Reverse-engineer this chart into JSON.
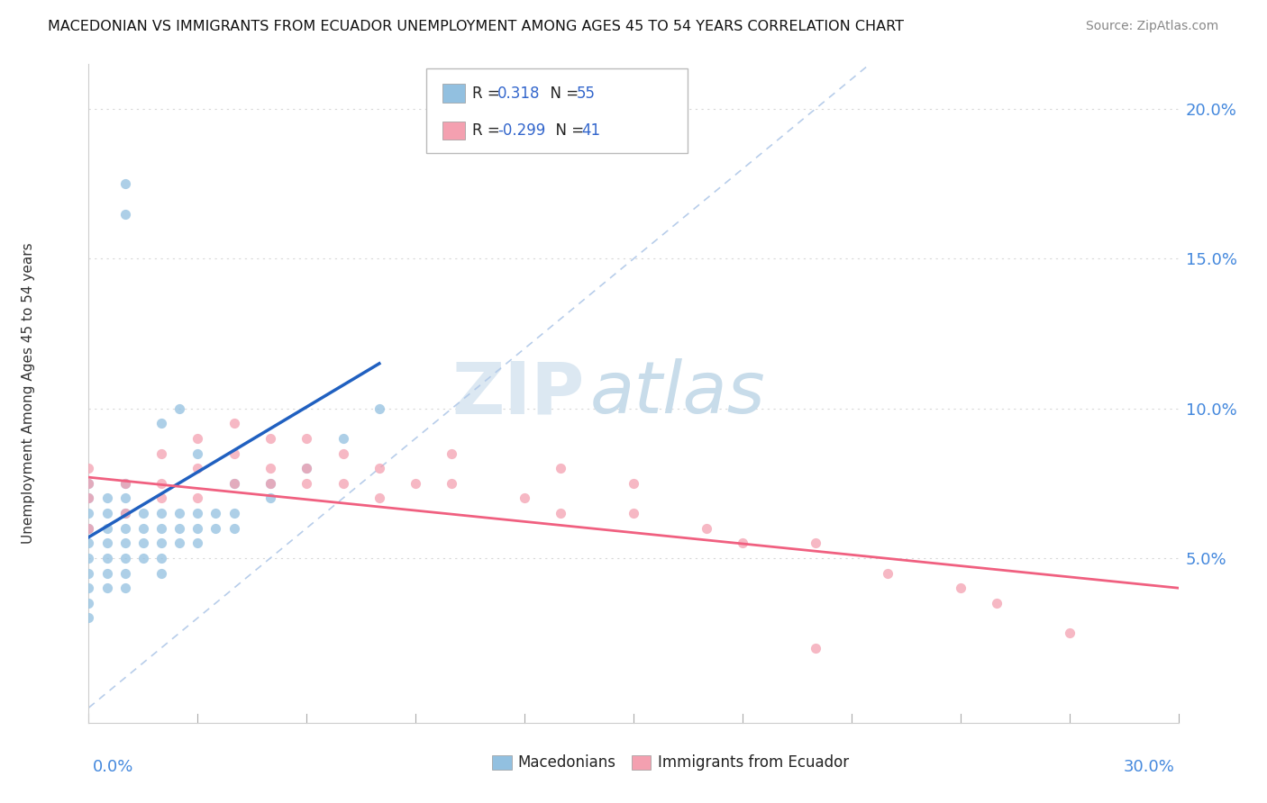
{
  "title": "MACEDONIAN VS IMMIGRANTS FROM ECUADOR UNEMPLOYMENT AMONG AGES 45 TO 54 YEARS CORRELATION CHART",
  "source": "Source: ZipAtlas.com",
  "ylabel": "Unemployment Among Ages 45 to 54 years",
  "xlim": [
    0.0,
    0.3
  ],
  "ylim": [
    -0.005,
    0.215
  ],
  "yticks": [
    0.0,
    0.05,
    0.1,
    0.15,
    0.2
  ],
  "ytick_labels": [
    "",
    "5.0%",
    "10.0%",
    "15.0%",
    "20.0%"
  ],
  "blue_color": "#92c0e0",
  "pink_color": "#f4a0b0",
  "blue_line_color": "#2060c0",
  "pink_line_color": "#f06080",
  "diag_line_color": "#b0c8e8",
  "grid_color": "#d8d8d8",
  "mac_x": [
    0.0,
    0.0,
    0.0,
    0.0,
    0.0,
    0.0,
    0.0,
    0.0,
    0.0,
    0.0,
    0.005,
    0.005,
    0.005,
    0.005,
    0.005,
    0.005,
    0.005,
    0.01,
    0.01,
    0.01,
    0.01,
    0.01,
    0.01,
    0.01,
    0.01,
    0.015,
    0.015,
    0.015,
    0.015,
    0.02,
    0.02,
    0.02,
    0.02,
    0.02,
    0.025,
    0.025,
    0.025,
    0.03,
    0.03,
    0.03,
    0.035,
    0.035,
    0.04,
    0.04,
    0.05,
    0.05,
    0.06,
    0.07,
    0.08,
    0.01,
    0.01,
    0.02,
    0.025,
    0.03,
    0.04
  ],
  "mac_y": [
    0.035,
    0.04,
    0.045,
    0.05,
    0.055,
    0.06,
    0.065,
    0.07,
    0.075,
    0.03,
    0.04,
    0.045,
    0.05,
    0.055,
    0.06,
    0.065,
    0.07,
    0.04,
    0.045,
    0.05,
    0.055,
    0.06,
    0.065,
    0.07,
    0.075,
    0.05,
    0.055,
    0.06,
    0.065,
    0.045,
    0.05,
    0.055,
    0.06,
    0.065,
    0.055,
    0.06,
    0.065,
    0.055,
    0.06,
    0.065,
    0.06,
    0.065,
    0.06,
    0.065,
    0.07,
    0.075,
    0.08,
    0.09,
    0.1,
    0.165,
    0.175,
    0.095,
    0.1,
    0.085,
    0.075
  ],
  "ecu_x": [
    0.0,
    0.0,
    0.0,
    0.0,
    0.01,
    0.01,
    0.02,
    0.02,
    0.02,
    0.03,
    0.03,
    0.03,
    0.04,
    0.04,
    0.04,
    0.05,
    0.05,
    0.05,
    0.06,
    0.06,
    0.06,
    0.07,
    0.07,
    0.08,
    0.08,
    0.09,
    0.1,
    0.1,
    0.12,
    0.13,
    0.15,
    0.17,
    0.18,
    0.2,
    0.22,
    0.24,
    0.25,
    0.27,
    0.13,
    0.15,
    0.2
  ],
  "ecu_y": [
    0.06,
    0.07,
    0.075,
    0.08,
    0.065,
    0.075,
    0.07,
    0.075,
    0.085,
    0.07,
    0.08,
    0.09,
    0.075,
    0.085,
    0.095,
    0.075,
    0.08,
    0.09,
    0.075,
    0.08,
    0.09,
    0.075,
    0.085,
    0.07,
    0.08,
    0.075,
    0.075,
    0.085,
    0.07,
    0.065,
    0.065,
    0.06,
    0.055,
    0.055,
    0.045,
    0.04,
    0.035,
    0.025,
    0.08,
    0.075,
    0.02
  ],
  "blue_line_x": [
    0.0,
    0.08
  ],
  "blue_line_y": [
    0.057,
    0.115
  ],
  "pink_line_x": [
    0.0,
    0.3
  ],
  "pink_line_y": [
    0.077,
    0.04
  ],
  "diag_line_x": [
    0.0,
    0.215
  ],
  "diag_line_y": [
    0.0,
    0.215
  ]
}
